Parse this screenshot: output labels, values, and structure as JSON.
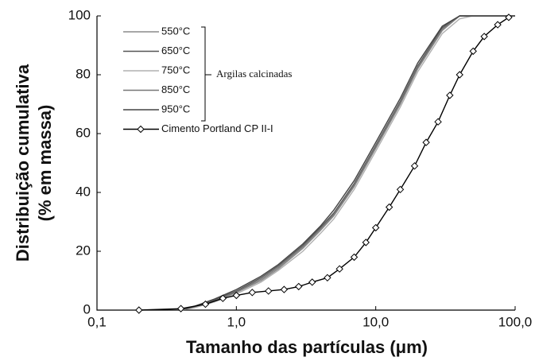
{
  "chart_data": {
    "type": "line",
    "xlabel": "Tamanho das partículas (μm)",
    "ylabel": [
      "Distribuição cumulativa",
      "(% em massa)"
    ],
    "xscale": "log",
    "xlim": [
      0.1,
      100
    ],
    "xticks": [
      {
        "value": 0.1,
        "label": "0,1"
      },
      {
        "value": 1,
        "label": "1,0"
      },
      {
        "value": 10,
        "label": "10,0"
      },
      {
        "value": 100,
        "label": "100,0"
      }
    ],
    "ylim": [
      0,
      100
    ],
    "yticks": [
      0,
      20,
      40,
      60,
      80,
      100
    ],
    "grid": false,
    "legend_group_label": "Argilas calcinadas",
    "series": [
      {
        "name": "550°C",
        "color": "#8a8a8a",
        "marker": "none",
        "x": [
          0.4,
          0.5,
          0.7,
          1,
          1.5,
          2,
          3,
          4,
          5,
          7,
          10,
          15,
          20,
          30,
          40,
          50,
          100
        ],
        "values": [
          0,
          1,
          3,
          6,
          10,
          14,
          21,
          27,
          32,
          42,
          55,
          70,
          82,
          95,
          100,
          100,
          100
        ]
      },
      {
        "name": "650°C",
        "color": "#555555",
        "marker": "none",
        "x": [
          0.4,
          0.5,
          0.7,
          1,
          1.5,
          2,
          3,
          4,
          5,
          7,
          10,
          15,
          20,
          30,
          40,
          50,
          100
        ],
        "values": [
          0,
          1.2,
          3.5,
          6.5,
          11,
          15,
          22,
          28,
          33,
          43,
          56,
          71,
          83,
          96,
          100,
          100,
          100
        ]
      },
      {
        "name": "750°C",
        "color": "#b0b0b0",
        "marker": "none",
        "x": [
          0.4,
          0.5,
          0.7,
          1,
          1.5,
          2,
          3,
          4,
          5,
          7,
          10,
          15,
          20,
          30,
          40,
          50,
          100
        ],
        "values": [
          0,
          0.8,
          2.8,
          5.5,
          9.5,
          13.5,
          20,
          26,
          31,
          41,
          54,
          69,
          81,
          94,
          99,
          100,
          100
        ]
      },
      {
        "name": "850°C",
        "color": "#777777",
        "marker": "none",
        "x": [
          0.4,
          0.5,
          0.7,
          1,
          1.5,
          2,
          3,
          4,
          5,
          7,
          10,
          15,
          20,
          30,
          40,
          50,
          100
        ],
        "values": [
          0,
          1.1,
          3.2,
          6.2,
          10.5,
          14.5,
          21.5,
          27.5,
          32.5,
          42.5,
          55.5,
          70.5,
          82.5,
          95.5,
          100,
          100,
          100
        ]
      },
      {
        "name": "950°C",
        "color": "#444444",
        "marker": "none",
        "x": [
          0.4,
          0.5,
          0.7,
          1,
          1.5,
          2,
          3,
          4,
          5,
          7,
          10,
          15,
          20,
          30,
          40,
          50,
          100
        ],
        "values": [
          0,
          1.3,
          3.8,
          7,
          11.5,
          15.5,
          22.5,
          28.5,
          34,
          44,
          57,
          72,
          84,
          96.5,
          100,
          100,
          100
        ]
      },
      {
        "name": "Cimento Portland CP II-I",
        "color": "#000000",
        "marker": "diamond",
        "x": [
          0.2,
          0.4,
          0.6,
          0.8,
          1,
          1.3,
          1.7,
          2.2,
          2.8,
          3.5,
          4.5,
          5.5,
          7,
          8.5,
          10,
          12.5,
          15,
          19,
          23,
          28,
          34,
          40,
          50,
          60,
          75,
          90
        ],
        "values": [
          0,
          0.5,
          2,
          4,
          5,
          6,
          6.5,
          7,
          8,
          9.5,
          11,
          14,
          18,
          23,
          28,
          35,
          41,
          49,
          57,
          64,
          73,
          80,
          88,
          93,
          97,
          99.5
        ]
      }
    ]
  }
}
